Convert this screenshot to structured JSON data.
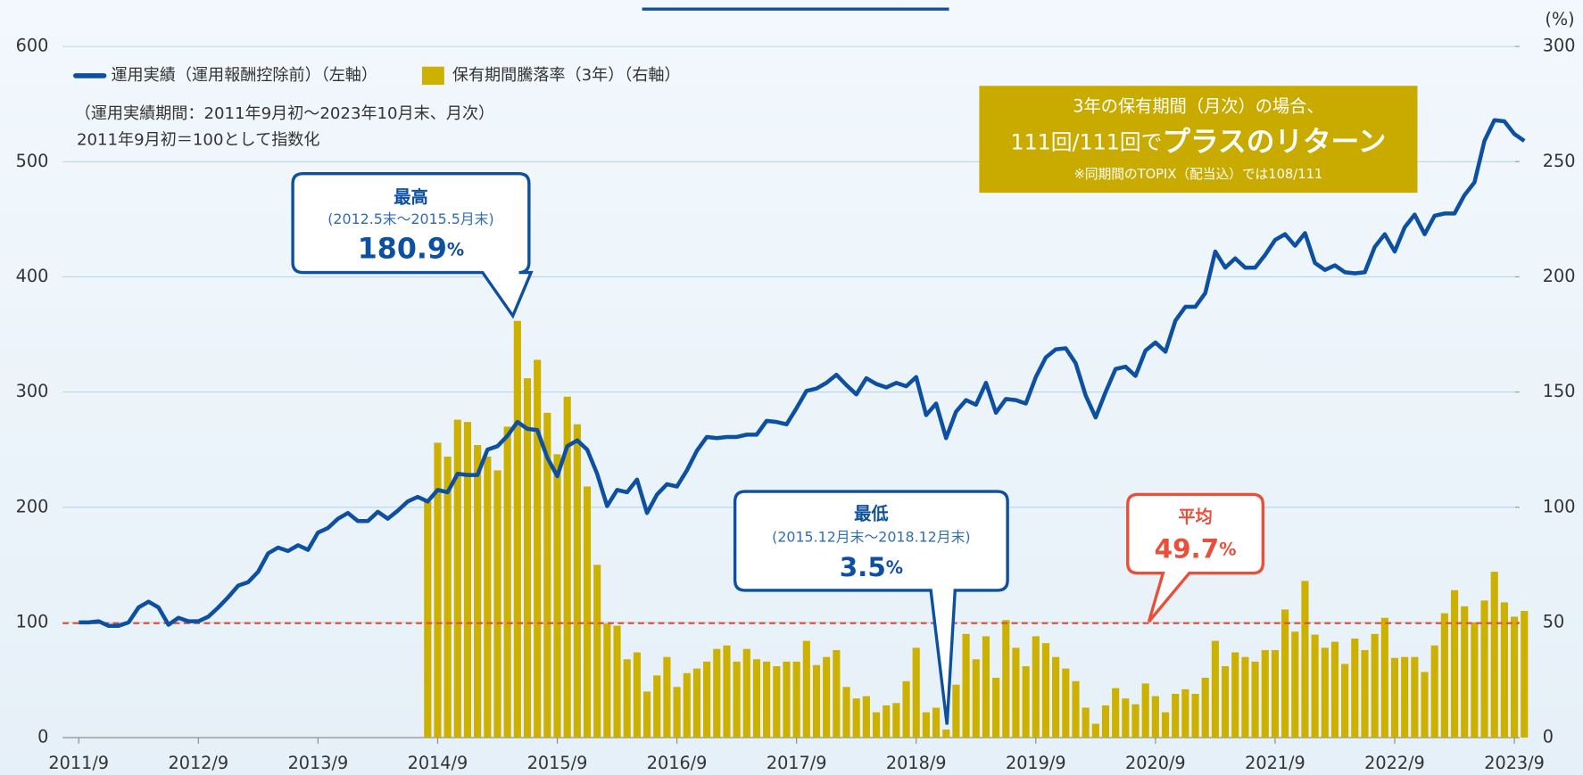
{
  "chart_data": {
    "type": "bar_line",
    "y2_unit": "(%)",
    "legend_position": "top-left",
    "grid": true,
    "notes": [
      "（運用実績期間：2011年9月初～2023年10月末、月次）",
      "2011年9月初＝100として指数化"
    ],
    "highlight_box": {
      "line1": "3年の保有期間（月次）の場合、",
      "line2a": "111回/111回で",
      "line2b": "プラスのリターン",
      "line3": "※同期間のTOPIX（配当込）では108/111"
    },
    "callouts": [
      {
        "title": "最高",
        "period": "(2012.5末～2015.5月末)",
        "value": 180.9,
        "unit": "%"
      },
      {
        "title": "最低",
        "period": "(2015.12月末～2018.12月末)",
        "value": 3.5,
        "unit": "%"
      }
    ],
    "reference_line": {
      "title": "平均",
      "value": 49.7,
      "unit": "%",
      "color": "#e8503a",
      "axis": "y2"
    },
    "categories": [
      "2011/9",
      null,
      null,
      null,
      null,
      null,
      null,
      null,
      null,
      null,
      null,
      null,
      "2012/9",
      null,
      null,
      null,
      null,
      null,
      null,
      null,
      null,
      null,
      null,
      null,
      "2013/9",
      null,
      null,
      null,
      null,
      null,
      null,
      null,
      null,
      null,
      null,
      null,
      "2014/9",
      null,
      null,
      null,
      null,
      null,
      null,
      null,
      null,
      null,
      null,
      null,
      "2015/9",
      null,
      null,
      null,
      null,
      null,
      null,
      null,
      null,
      null,
      null,
      null,
      "2016/9",
      null,
      null,
      null,
      null,
      null,
      null,
      null,
      null,
      null,
      null,
      null,
      "2017/9",
      null,
      null,
      null,
      null,
      null,
      null,
      null,
      null,
      null,
      null,
      null,
      "2018/9",
      null,
      null,
      null,
      null,
      null,
      null,
      null,
      null,
      null,
      null,
      null,
      "2019/9",
      null,
      null,
      null,
      null,
      null,
      null,
      null,
      null,
      null,
      null,
      null,
      "2020/9",
      null,
      null,
      null,
      null,
      null,
      null,
      null,
      null,
      null,
      null,
      null,
      "2021/9",
      null,
      null,
      null,
      null,
      null,
      null,
      null,
      null,
      null,
      null,
      null,
      "2022/9",
      null,
      null,
      null,
      null,
      null,
      null,
      null,
      null,
      null,
      null,
      null,
      "2023/9",
      null
    ],
    "series": [
      {
        "name": "運用実績（運用報酬控除前）（左軸）",
        "type": "line",
        "color": "#0d4fa0",
        "axis": "y",
        "values": [
          100,
          100,
          101,
          97,
          97,
          100,
          113,
          118,
          113,
          98,
          104,
          101,
          101,
          105,
          113,
          122,
          132,
          135,
          144,
          160,
          165,
          162,
          167,
          163,
          178,
          182,
          190,
          195,
          188,
          188,
          196,
          190,
          197,
          205,
          209,
          205,
          215,
          213,
          229,
          228,
          228,
          250,
          253,
          262,
          274,
          268,
          267,
          243,
          227,
          253,
          258,
          250,
          229,
          201,
          215,
          213,
          224,
          195,
          211,
          220,
          218,
          232,
          249,
          261,
          260,
          261,
          261,
          263,
          263,
          275,
          274,
          272,
          286,
          301,
          303,
          308,
          315,
          306,
          298,
          312,
          307,
          304,
          308,
          305,
          313,
          280,
          290,
          260,
          283,
          293,
          289,
          308,
          282,
          294,
          293,
          290,
          313,
          330,
          337,
          338,
          325,
          297,
          278,
          300,
          320,
          322,
          314,
          336,
          343,
          335,
          362,
          374,
          374,
          386,
          422,
          408,
          416,
          408,
          408,
          419,
          432,
          437,
          427,
          438,
          412,
          406,
          410,
          404,
          403,
          404,
          426,
          437,
          422,
          443,
          454,
          437,
          453,
          455,
          455,
          471,
          482,
          518,
          536,
          535,
          524,
          518
        ]
      },
      {
        "name": "保有期間騰落率（3年）（右軸）",
        "type": "bar",
        "color": "#cdb100",
        "axis": "y2",
        "values": [
          null,
          null,
          null,
          null,
          null,
          null,
          null,
          null,
          null,
          null,
          null,
          null,
          null,
          null,
          null,
          null,
          null,
          null,
          null,
          null,
          null,
          null,
          null,
          null,
          null,
          null,
          null,
          null,
          null,
          null,
          null,
          null,
          null,
          null,
          null,
          102.5,
          128,
          122,
          138,
          137,
          127,
          122,
          116,
          135,
          180.9,
          156,
          164,
          141,
          123,
          148,
          136,
          109,
          75,
          49.5,
          48.6,
          34,
          37,
          20,
          27,
          35,
          22,
          28,
          30,
          33,
          38.5,
          40,
          33,
          38.5,
          34,
          33,
          31,
          33,
          33,
          42,
          31.5,
          35,
          38,
          22,
          17,
          18,
          11,
          14,
          15,
          24.5,
          39,
          11,
          13,
          3.5,
          23,
          45,
          34,
          44,
          26,
          51,
          39,
          31,
          44,
          41,
          35,
          30,
          24.5,
          13,
          6,
          14,
          21.5,
          17,
          14.5,
          23.5,
          18,
          11,
          19,
          21,
          19,
          26,
          42,
          31,
          37,
          35,
          33,
          38,
          38,
          55.6,
          46,
          68,
          44.7,
          39,
          41.6,
          32,
          43,
          38,
          45,
          52,
          34.6,
          35,
          35,
          28.5,
          40,
          54,
          64,
          57,
          50,
          59.5,
          72,
          58.7,
          52.5,
          55
        ]
      }
    ],
    "ylim": [
      0,
      600
    ],
    "yticks": [
      0,
      100,
      200,
      300,
      400,
      500,
      600
    ],
    "y2lim": [
      0,
      300
    ],
    "y2ticks": [
      0,
      50,
      100,
      150,
      200,
      250,
      300
    ]
  }
}
